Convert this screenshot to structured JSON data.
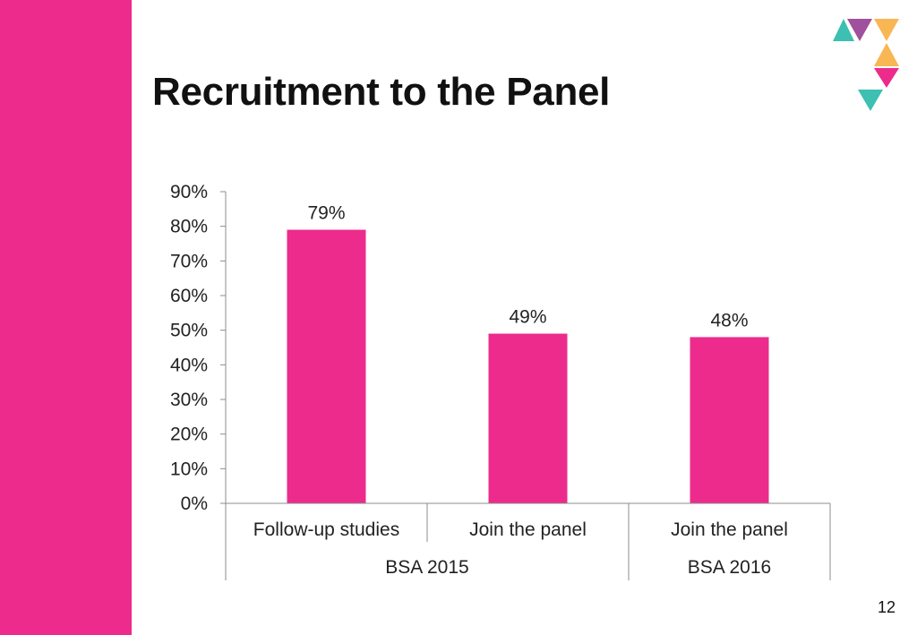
{
  "slide": {
    "title": "Recruitment to the Panel",
    "page_number": "12"
  },
  "colors": {
    "accent": "#ec2b8c",
    "logo_teal": "#3dbfb1",
    "logo_purple": "#a0509c",
    "logo_orange": "#f8b654",
    "logo_pink": "#ec2b8c"
  },
  "chart_data": {
    "type": "bar",
    "title": "",
    "categories": [
      "Follow-up studies",
      "Join the panel",
      "Join the panel"
    ],
    "groups": [
      {
        "label": "BSA 2015",
        "span": 2
      },
      {
        "label": "BSA 2016",
        "span": 1
      }
    ],
    "values": [
      79,
      49,
      48
    ],
    "data_labels": [
      "79%",
      "49%",
      "48%"
    ],
    "ylim": [
      0,
      90
    ],
    "yticks": [
      "0%",
      "10%",
      "20%",
      "30%",
      "40%",
      "50%",
      "60%",
      "70%",
      "80%",
      "90%"
    ],
    "xlabel": "",
    "ylabel": "",
    "grid": false,
    "bar_color": "#ec2b8c"
  }
}
